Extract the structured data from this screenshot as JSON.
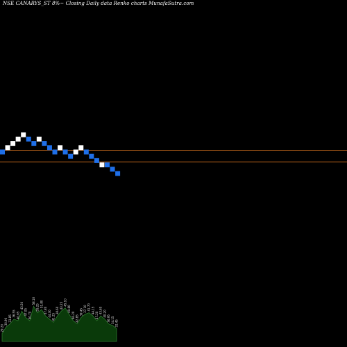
{
  "header": {
    "title": "NSE CANARYS_ST 8%~ Closing Daily data Renko charts MunafaSutra.com"
  },
  "chart_data": {
    "type": "renko",
    "title": "NSE CANARYS_ST 8%~ Closing Daily data Renko charts MunafaSutra.com",
    "box_size_pct": 8,
    "colors": {
      "up_brick": "#ffffff",
      "down_brick": "#1f6fe8",
      "reference_line": "#b8621a",
      "volume_area": "#0a3a0a",
      "volume_edge": "#2f7a2f",
      "volume_label": "#e0e0e0"
    },
    "bricks": [
      {
        "level": 0,
        "dir": "down"
      },
      {
        "level": 1,
        "dir": "up"
      },
      {
        "level": 2,
        "dir": "up"
      },
      {
        "level": 3,
        "dir": "up"
      },
      {
        "level": 4,
        "dir": "up"
      },
      {
        "level": 3,
        "dir": "down"
      },
      {
        "level": 2,
        "dir": "down"
      },
      {
        "level": 3,
        "dir": "up"
      },
      {
        "level": 2,
        "dir": "down"
      },
      {
        "level": 1,
        "dir": "down"
      },
      {
        "level": 0,
        "dir": "down"
      },
      {
        "level": 1,
        "dir": "up"
      },
      {
        "level": 0,
        "dir": "down"
      },
      {
        "level": -1,
        "dir": "down"
      },
      {
        "level": 0,
        "dir": "up"
      },
      {
        "level": 1,
        "dir": "up"
      },
      {
        "level": 0,
        "dir": "down"
      },
      {
        "level": -1,
        "dir": "down"
      },
      {
        "level": -2,
        "dir": "down"
      },
      {
        "level": -3,
        "dir": "up"
      },
      {
        "level": -3,
        "dir": "down"
      },
      {
        "level": -4,
        "dir": "down"
      },
      {
        "level": -5,
        "dir": "down"
      }
    ],
    "reference_levels": [
      0.4,
      -2.3
    ],
    "volume": {
      "values": [
        5,
        9,
        11,
        14,
        13,
        19,
        15,
        13,
        22,
        18,
        20,
        16,
        14,
        12,
        16,
        19,
        21,
        17,
        13,
        11,
        15,
        17,
        18,
        16,
        13,
        16,
        14,
        11,
        10,
        8
      ],
      "labels": [
        "29.20",
        "30.90",
        "33.85",
        "36.55",
        "40.65",
        "43.50",
        "47.05",
        "50.70",
        "58.10",
        "55.25",
        "51.80",
        "47.80",
        "44.30",
        "41.25",
        "38.60",
        "43.25",
        "45.10",
        "49.80",
        "46.20",
        "42.85",
        "39.45",
        "37.10",
        "41.70",
        "44.15",
        "47.20",
        "43.65",
        "40.20",
        "36.95",
        "34.15",
        "32.45"
      ]
    }
  }
}
